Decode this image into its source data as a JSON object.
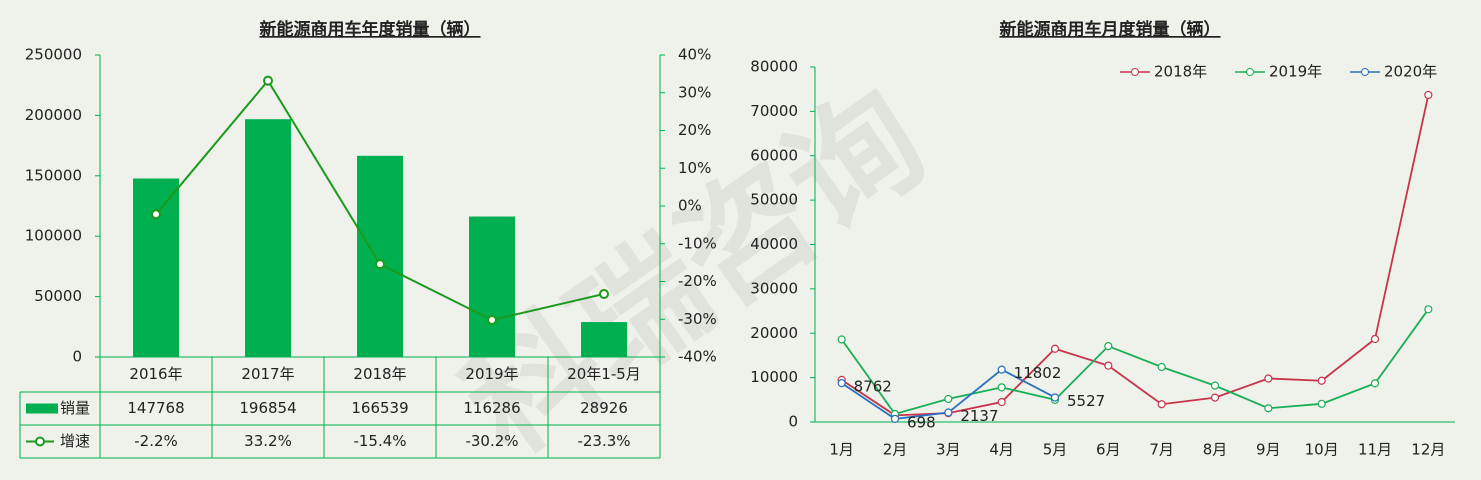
{
  "watermark": "科瑞咨询",
  "chart_data": [
    {
      "type": "bar",
      "title": "新能源商用车年度销量（辆）",
      "categories": [
        "2016年",
        "2017年",
        "2018年",
        "2019年",
        "20年1-5月"
      ],
      "series": [
        {
          "name": "销量",
          "color": "#00b050",
          "values": [
            147768,
            196854,
            166539,
            116286,
            28926
          ]
        },
        {
          "name": "增速",
          "color": "#1a9a1a",
          "type": "line",
          "axis": "y2",
          "values": [
            -2.2,
            33.2,
            -15.4,
            -30.2,
            -23.3
          ],
          "value_labels": [
            "-2.2%",
            "33.2%",
            "-15.4%",
            "-30.2%",
            "-23.3%"
          ]
        }
      ],
      "ylim": [
        0,
        250000
      ],
      "yticks": [
        0,
        50000,
        100000,
        150000,
        200000,
        250000
      ],
      "y2lim": [
        -40,
        40
      ],
      "y2ticks": [
        {
          "value": -40,
          "label": "-40%"
        },
        {
          "value": -30,
          "label": "-30%"
        },
        {
          "value": -20,
          "label": "-20%"
        },
        {
          "value": -10,
          "label": "-10%"
        },
        {
          "value": 0,
          "label": "0%"
        },
        {
          "value": 10,
          "label": "10%"
        },
        {
          "value": 20,
          "label": "20%"
        },
        {
          "value": 30,
          "label": "30%"
        },
        {
          "value": 40,
          "label": "40%"
        }
      ],
      "grid": false
    },
    {
      "type": "line",
      "title": "新能源商用车月度销量（辆）",
      "categories": [
        "1月",
        "2月",
        "3月",
        "4月",
        "5月",
        "6月",
        "7月",
        "8月",
        "9月",
        "10月",
        "11月",
        "12月"
      ],
      "series": [
        {
          "name": "2018年",
          "color": "#c8324a",
          "values": [
            9500,
            1500,
            2000,
            4500,
            16500,
            12700,
            4000,
            5500,
            9800,
            9300,
            18700,
            73700
          ]
        },
        {
          "name": "2019年",
          "color": "#1aae55",
          "values": [
            18600,
            1800,
            5200,
            7800,
            5000,
            17100,
            12400,
            8200,
            3100,
            4100,
            8700,
            25400
          ]
        },
        {
          "name": "2020年",
          "color": "#2a6fc0",
          "show_labels": true,
          "values": [
            8762,
            698,
            2137,
            11802,
            5527,
            null,
            null,
            null,
            null,
            null,
            null,
            null
          ]
        }
      ],
      "ylim": [
        0,
        80000
      ],
      "yticks": [
        0,
        10000,
        20000,
        30000,
        40000,
        50000,
        60000,
        70000,
        80000
      ],
      "legend": "top-right",
      "grid": false
    }
  ]
}
